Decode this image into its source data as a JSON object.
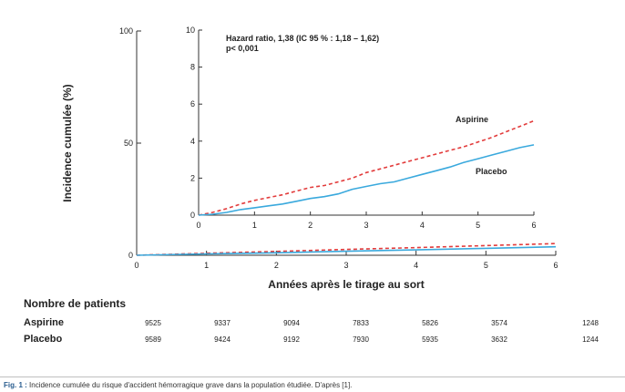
{
  "chart_data": [
    {
      "type": "line",
      "ylabel": "Incidence cumulée (%)",
      "xlabel": "Années après le tirage au sort",
      "xlim": [
        0,
        6
      ],
      "ylim": [
        0,
        100
      ],
      "x_ticks": [
        "0",
        "1",
        "2",
        "3",
        "4",
        "5",
        "6"
      ],
      "y_ticks": [
        "0",
        "50",
        "100"
      ],
      "series": [
        {
          "name": "Aspirine",
          "style": "dashed",
          "color": "#e23b3b",
          "x": [
            0,
            1,
            2,
            3,
            4,
            5,
            6
          ],
          "y": [
            0,
            0.9,
            1.7,
            2.6,
            3.4,
            4.3,
            5.2
          ]
        },
        {
          "name": "Placebo",
          "style": "solid",
          "color": "#3aa9dd",
          "x": [
            0,
            1,
            2,
            3,
            4,
            5,
            6
          ],
          "y": [
            0,
            0.6,
            1.1,
            1.8,
            2.4,
            3.1,
            3.8
          ]
        }
      ]
    },
    {
      "type": "line",
      "xlim": [
        0,
        6
      ],
      "ylim": [
        0,
        10
      ],
      "x_ticks": [
        "0",
        "1",
        "2",
        "3",
        "4",
        "5",
        "6"
      ],
      "y_ticks": [
        "0",
        "2",
        "4",
        "6",
        "8",
        "10"
      ],
      "annotations": [
        "Hazard ratio, 1,38 (IC 95 % : 1,18 – 1,62)",
        "p< 0,001"
      ],
      "series": [
        {
          "name": "Aspirine",
          "style": "dashed",
          "color": "#e23b3b",
          "x": [
            0,
            0.25,
            0.5,
            0.75,
            1,
            1.25,
            1.5,
            1.75,
            2,
            2.25,
            2.5,
            2.75,
            3,
            3.25,
            3.5,
            3.75,
            4,
            4.25,
            4.5,
            4.75,
            5,
            5.25,
            5.5,
            5.75,
            6
          ],
          "y": [
            0,
            0.15,
            0.35,
            0.6,
            0.8,
            0.95,
            1.1,
            1.3,
            1.5,
            1.6,
            1.8,
            2.0,
            2.3,
            2.5,
            2.7,
            2.9,
            3.1,
            3.3,
            3.5,
            3.7,
            3.95,
            4.2,
            4.5,
            4.8,
            5.1
          ]
        },
        {
          "name": "Placebo",
          "style": "solid",
          "color": "#3aa9dd",
          "x": [
            0,
            0.25,
            0.5,
            0.75,
            1,
            1.25,
            1.5,
            1.75,
            2,
            2.25,
            2.5,
            2.75,
            3,
            3.25,
            3.5,
            3.75,
            4,
            4.25,
            4.5,
            4.75,
            5,
            5.25,
            5.5,
            5.75,
            6
          ],
          "y": [
            0,
            0.05,
            0.15,
            0.3,
            0.4,
            0.5,
            0.6,
            0.75,
            0.9,
            1.0,
            1.15,
            1.4,
            1.55,
            1.7,
            1.8,
            2.0,
            2.2,
            2.4,
            2.6,
            2.85,
            3.05,
            3.25,
            3.45,
            3.65,
            3.8
          ]
        }
      ]
    }
  ],
  "patients": {
    "title": "Nombre de patients",
    "rows": [
      {
        "name": "Aspirine",
        "values": [
          "9525",
          "9337",
          "9094",
          "7833",
          "5826",
          "3574",
          "1248"
        ]
      },
      {
        "name": "Placebo",
        "values": [
          "9589",
          "9424",
          "9192",
          "7930",
          "5935",
          "3632",
          "1244"
        ]
      }
    ]
  },
  "caption": {
    "label": "Fig. 1 :",
    "text": "Incidence cumulée du risque d'accident hémorragique grave dans la population étudiée. D'après [1]."
  }
}
